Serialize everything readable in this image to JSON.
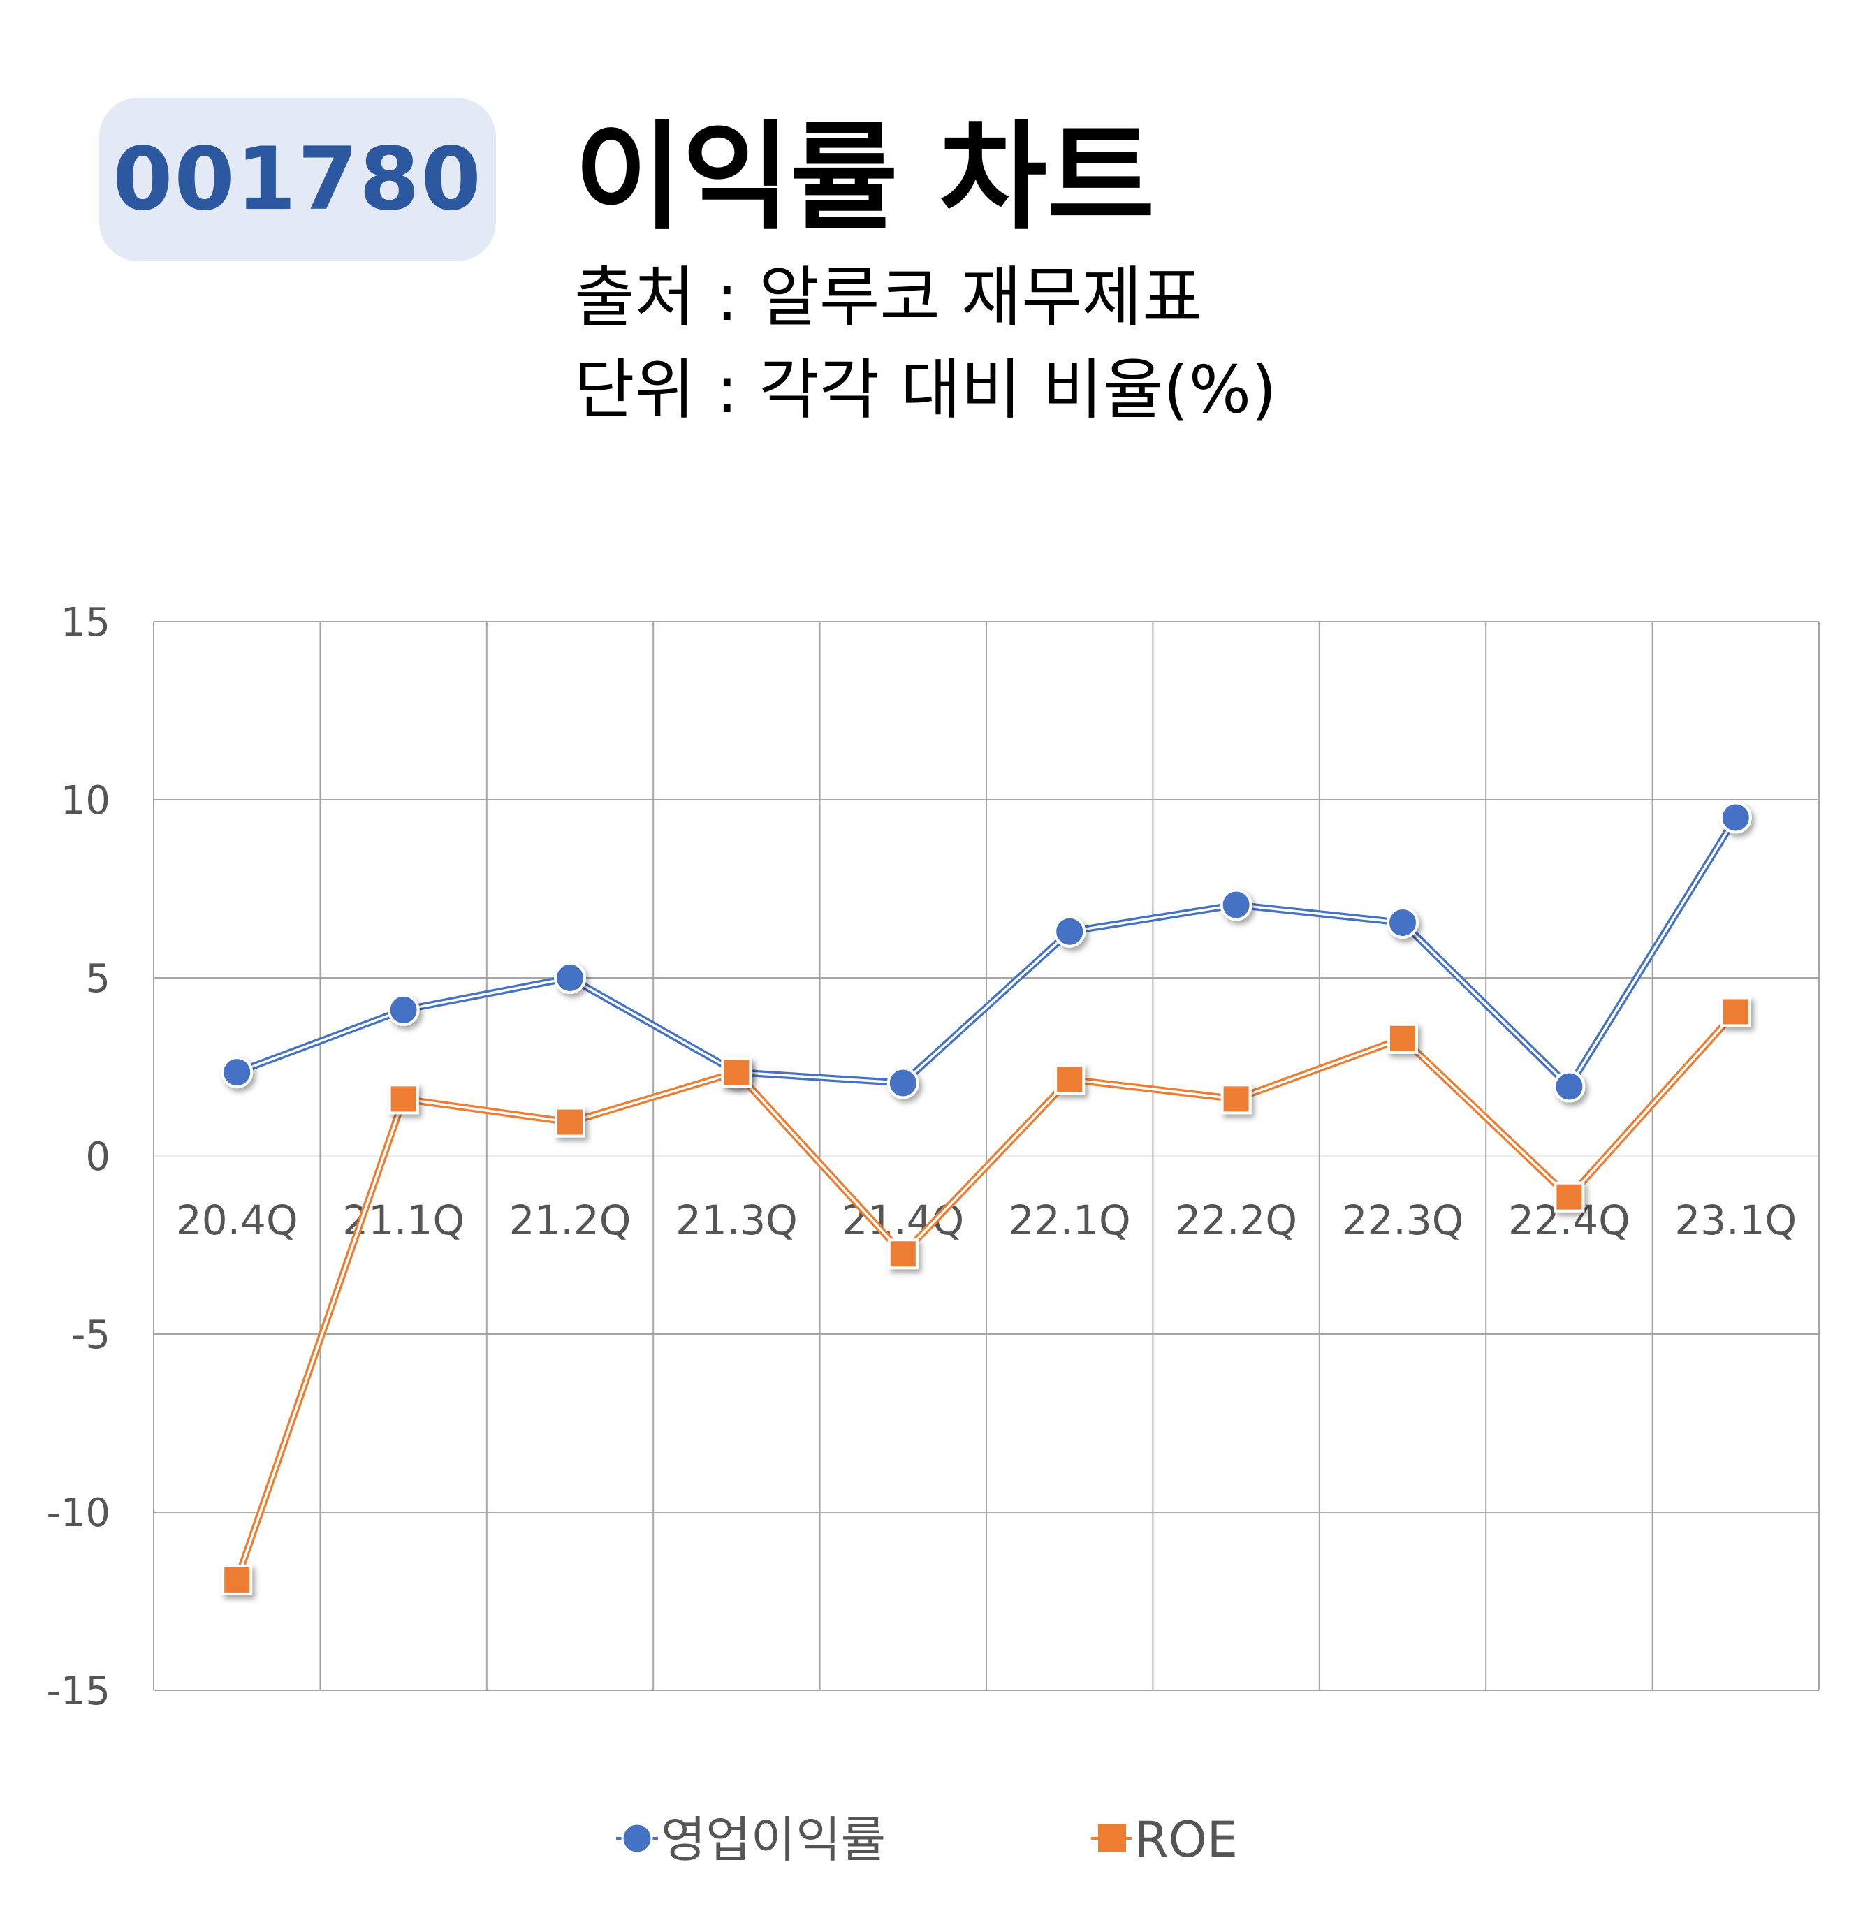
{
  "header": {
    "code": "001780",
    "title": "이익률 차트",
    "source": "출처 : 알루코 재무제표",
    "unit": "단위 : 각각 대비 비율(%)"
  },
  "colors": {
    "series1": "#4472c4",
    "series2": "#ed7d31",
    "grid": "#a6a6a6",
    "badge_bg": "#e3e9f5",
    "badge_text": "#2c58a0"
  },
  "chart_data": {
    "type": "line",
    "categories": [
      "20.4Q",
      "21.1Q",
      "21.2Q",
      "21.3Q",
      "21.4Q",
      "22.1Q",
      "22.2Q",
      "22.3Q",
      "22.4Q",
      "23.1Q"
    ],
    "series": [
      {
        "name": "영업이익률",
        "marker": "circle",
        "values": [
          2.35,
          4.1,
          5.0,
          2.35,
          2.05,
          6.3,
          7.05,
          6.55,
          1.95,
          9.5
        ]
      },
      {
        "name": "ROE",
        "marker": "square",
        "values": [
          -11.9,
          1.6,
          0.95,
          2.35,
          -2.75,
          2.15,
          1.6,
          3.3,
          -1.15,
          4.05
        ]
      }
    ],
    "yticks": [
      15,
      10,
      5,
      0,
      -5,
      -10,
      -15
    ],
    "ylim": [
      -15,
      15
    ],
    "grid": true,
    "legend": "bottom"
  }
}
